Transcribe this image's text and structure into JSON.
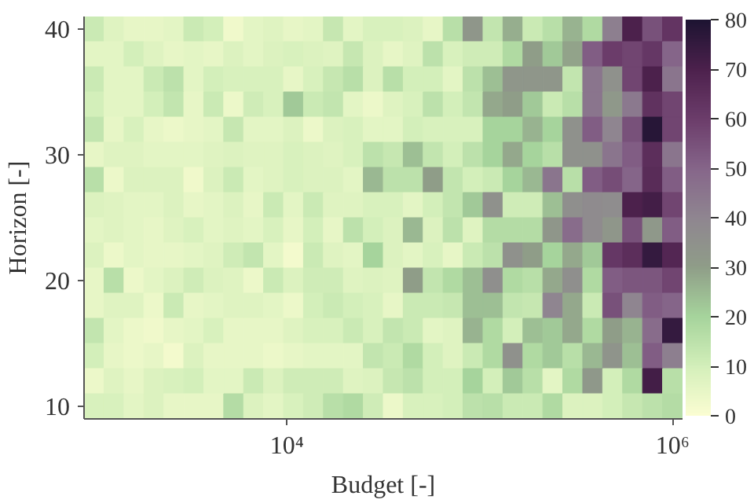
{
  "chart_data": {
    "type": "heatmap",
    "xlabel": "Budget [-]",
    "ylabel": "Horizon [-]",
    "log": "x",
    "xlim": [
      887,
      1127000
    ],
    "ylim": [
      9,
      41
    ],
    "xticks": [
      {
        "value": 10000,
        "label": "10⁴"
      },
      {
        "value": 1000000,
        "label": "10⁶"
      }
    ],
    "yticks": [
      10,
      20,
      30,
      40
    ],
    "clim": [
      0,
      80
    ],
    "cticks": [
      0,
      10,
      20,
      30,
      40,
      50,
      60,
      70,
      80
    ],
    "colors": [
      "#fbfdd2",
      "#d3efba",
      "#a6d49c",
      "#8f9d88",
      "#8f8690",
      "#86668a",
      "#6c3d6b",
      "#4d214d",
      "#1e1432"
    ],
    "x": [
      1000,
      1269,
      1610,
      2043,
      2593,
      3290,
      4175,
      5298,
      6723,
      8532,
      10826,
      13738,
      17433,
      22122,
      28072,
      35622,
      45204,
      57362,
      72790,
      92367,
      117210,
      148735,
      188739,
      239503,
      303920,
      385662,
      489390,
      621017,
      788046,
      1000000
    ],
    "y": [
      40,
      38,
      36,
      34,
      32,
      30,
      28,
      26,
      24,
      22,
      20,
      18,
      16,
      14,
      12,
      10
    ],
    "cells": [
      [
        12,
        7,
        5,
        5,
        6,
        12,
        10,
        3,
        6,
        7,
        5,
        6,
        13,
        6,
        9,
        9,
        8,
        5,
        16,
        33,
        14,
        27,
        12,
        16,
        26,
        18,
        42,
        70,
        55,
        63
      ],
      [
        6,
        6,
        10,
        7,
        5,
        6,
        5,
        8,
        6,
        8,
        9,
        8,
        7,
        13,
        8,
        5,
        7,
        15,
        9,
        11,
        11,
        18,
        30,
        22,
        29,
        52,
        60,
        58,
        62,
        50
      ],
      [
        12,
        6,
        6,
        12,
        15,
        6,
        10,
        9,
        9,
        9,
        5,
        9,
        13,
        16,
        8,
        16,
        10,
        10,
        6,
        15,
        24,
        33,
        33,
        33,
        14,
        45,
        35,
        58,
        70,
        45
      ],
      [
        10,
        6,
        6,
        10,
        14,
        5,
        12,
        4,
        11,
        9,
        22,
        12,
        14,
        6,
        4,
        7,
        9,
        15,
        10,
        14,
        28,
        30,
        22,
        12,
        16,
        45,
        32,
        44,
        64,
        58
      ],
      [
        14,
        5,
        9,
        5,
        4,
        5,
        6,
        13,
        6,
        6,
        8,
        4,
        8,
        9,
        6,
        6,
        10,
        9,
        9,
        9,
        20,
        20,
        26,
        20,
        35,
        52,
        40,
        55,
        78,
        58
      ],
      [
        5,
        7,
        7,
        6,
        6,
        6,
        7,
        8,
        7,
        7,
        9,
        8,
        7,
        9,
        15,
        13,
        24,
        14,
        10,
        15,
        20,
        28,
        20,
        16,
        35,
        35,
        45,
        52,
        65,
        45
      ],
      [
        16,
        4,
        8,
        8,
        8,
        3,
        8,
        12,
        6,
        7,
        9,
        8,
        8,
        6,
        25,
        15,
        15,
        30,
        14,
        10,
        12,
        20,
        25,
        45,
        16,
        52,
        56,
        50,
        66,
        52
      ],
      [
        8,
        7,
        6,
        6,
        8,
        5,
        6,
        8,
        5,
        12,
        6,
        12,
        7,
        7,
        9,
        9,
        6,
        10,
        14,
        22,
        35,
        11,
        11,
        24,
        36,
        38,
        37,
        70,
        72,
        58
      ],
      [
        6,
        7,
        6,
        5,
        7,
        9,
        6,
        7,
        6,
        9,
        5,
        10,
        5,
        15,
        10,
        8,
        25,
        8,
        15,
        7,
        17,
        17,
        17,
        33,
        48,
        38,
        33,
        55,
        32,
        52
      ],
      [
        8,
        4,
        6,
        5,
        5,
        6,
        7,
        11,
        14,
        6,
        2,
        12,
        7,
        6,
        20,
        8,
        6,
        9,
        5,
        12,
        15,
        35,
        30,
        20,
        28,
        22,
        62,
        65,
        75,
        68
      ],
      [
        5,
        16,
        4,
        6,
        8,
        11,
        8,
        7,
        4,
        12,
        8,
        11,
        11,
        7,
        8,
        7,
        30,
        14,
        18,
        24,
        36,
        18,
        16,
        28,
        36,
        18,
        52,
        54,
        54,
        58
      ],
      [
        5,
        7,
        7,
        4,
        12,
        5,
        6,
        7,
        7,
        6,
        4,
        10,
        12,
        10,
        9,
        5,
        12,
        12,
        13,
        24,
        24,
        14,
        13,
        40,
        28,
        12,
        55,
        40,
        52,
        50
      ],
      [
        14,
        6,
        4,
        3,
        5,
        6,
        9,
        5,
        5,
        5,
        7,
        9,
        9,
        12,
        9,
        14,
        12,
        6,
        7,
        26,
        18,
        10,
        24,
        22,
        28,
        18,
        30,
        26,
        48,
        75
      ],
      [
        10,
        5,
        4,
        5,
        2,
        8,
        5,
        5,
        5,
        4,
        5,
        6,
        6,
        6,
        14,
        12,
        18,
        10,
        7,
        12,
        18,
        35,
        18,
        22,
        16,
        25,
        34,
        24,
        52,
        42
      ],
      [
        4,
        7,
        5,
        8,
        9,
        10,
        6,
        6,
        12,
        8,
        11,
        11,
        11,
        7,
        8,
        13,
        15,
        10,
        10,
        20,
        10,
        22,
        16,
        6,
        18,
        32,
        10,
        18,
        72,
        16
      ],
      [
        9,
        9,
        6,
        8,
        5,
        5,
        5,
        17,
        8,
        6,
        9,
        11,
        16,
        18,
        11,
        4,
        9,
        9,
        10,
        15,
        16,
        12,
        12,
        18,
        8,
        8,
        10,
        13,
        15,
        17
      ]
    ]
  }
}
